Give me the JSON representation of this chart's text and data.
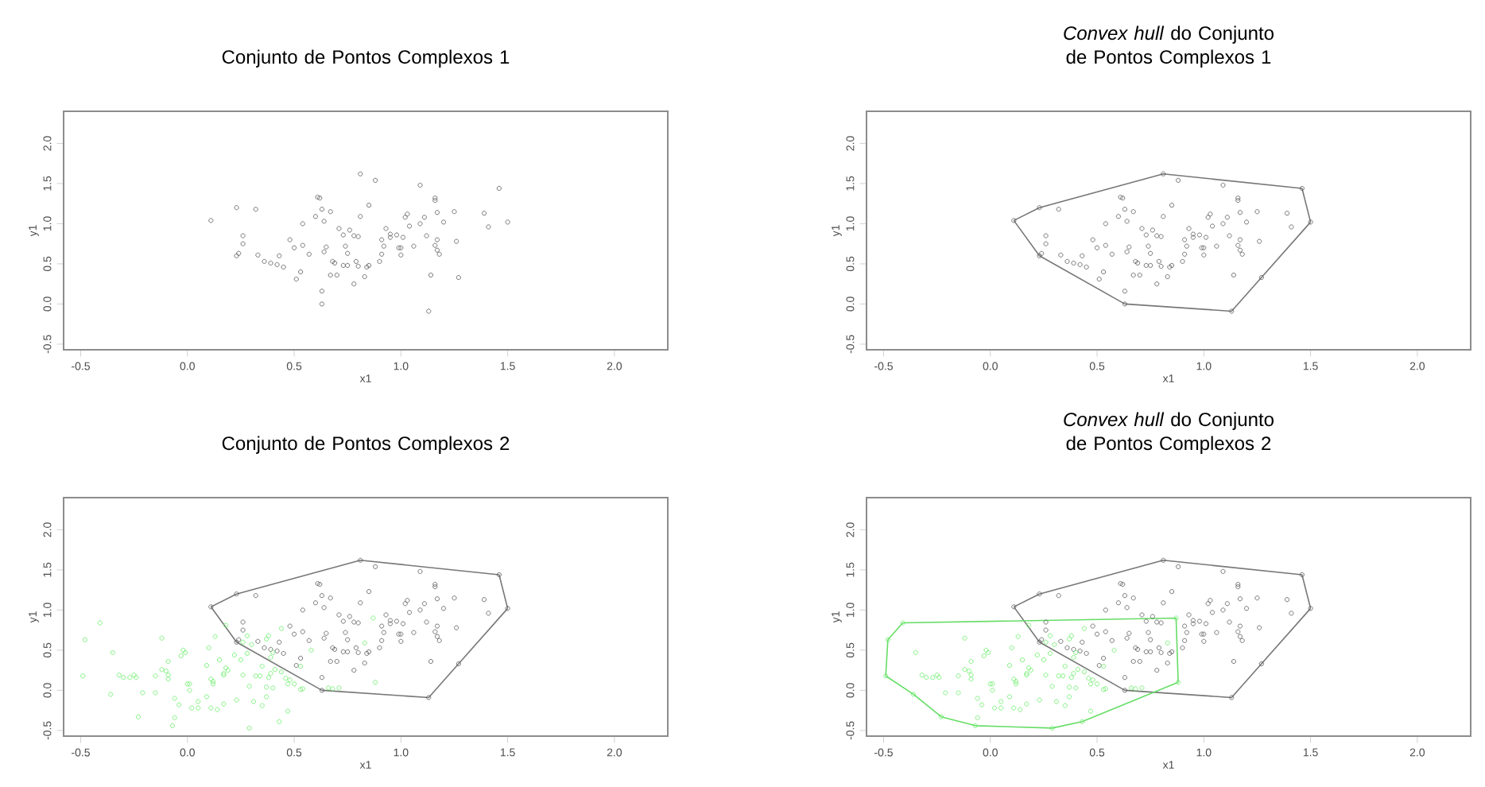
{
  "chart_data": [
    {
      "type": "scatter",
      "title": "Conjunto de Pontos Complexos 1",
      "xlabel": "x1",
      "ylabel": "y1",
      "marker": "circle",
      "xlim": [
        -0.58,
        2.25
      ],
      "ylim": [
        -0.57,
        2.4
      ],
      "xticks": [
        {
          "value": -0.5,
          "label": "-0.5"
        },
        {
          "value": 0,
          "label": "0.0"
        },
        {
          "value": 0.5,
          "label": "0.5"
        },
        {
          "value": 1,
          "label": "1.0"
        },
        {
          "value": 1.5,
          "label": "1.5"
        },
        {
          "value": 2,
          "label": "2.0"
        }
      ],
      "yticks": [
        {
          "value": -0.5,
          "label": "-0.5"
        },
        {
          "value": 0,
          "label": "0.0"
        },
        {
          "value": 0.5,
          "label": "0.5"
        },
        {
          "value": 1,
          "label": "1.0"
        },
        {
          "value": 1.5,
          "label": "1.5"
        },
        {
          "value": 2,
          "label": "2.0"
        }
      ],
      "series": [
        {
          "color": "#555555",
          "x": [
            0.11,
            0.23,
            0.32,
            0.26,
            0.26,
            0.23,
            0.24,
            0.33,
            0.36,
            0.39,
            0.42,
            0.43,
            0.45,
            0.48,
            0.5,
            0.51,
            0.53,
            0.54,
            0.54,
            0.57,
            0.6,
            0.61,
            0.62,
            0.63,
            0.64,
            0.65,
            0.64,
            0.67,
            0.67,
            0.68,
            0.69,
            0.7,
            0.63,
            0.63,
            0.71,
            0.73,
            0.74,
            0.75,
            0.73,
            0.75,
            0.78,
            0.76,
            0.78,
            0.79,
            0.8,
            0.8,
            0.81,
            0.81,
            0.83,
            0.84,
            0.85,
            0.85,
            0.88,
            0.9,
            0.91,
            0.91,
            0.92,
            0.93,
            0.95,
            0.95,
            0.98,
            0.99,
            1.0,
            1.0,
            1.01,
            1.02,
            1.03,
            1.04,
            1.06,
            1.09,
            1.09,
            1.11,
            1.12,
            1.14,
            1.13,
            1.16,
            1.16,
            1.16,
            1.17,
            1.17,
            1.18,
            1.17,
            1.2,
            1.25,
            1.26,
            1.27,
            1.39,
            1.41,
            1.46,
            1.5
          ],
          "values": [
            1.04,
            1.2,
            1.18,
            0.85,
            0.75,
            0.6,
            0.63,
            0.61,
            0.53,
            0.51,
            0.49,
            0.6,
            0.46,
            0.8,
            0.7,
            0.31,
            0.4,
            1.0,
            0.73,
            0.62,
            1.09,
            1.33,
            1.32,
            1.18,
            1.03,
            0.71,
            0.65,
            1.15,
            0.36,
            0.53,
            0.51,
            0.36,
            0.16,
            0.0,
            0.94,
            0.86,
            0.72,
            0.63,
            0.48,
            0.48,
            0.25,
            0.92,
            0.85,
            0.53,
            0.47,
            0.84,
            1.62,
            1.09,
            0.34,
            0.46,
            0.48,
            1.23,
            1.54,
            0.53,
            0.62,
            0.8,
            0.72,
            0.94,
            0.87,
            0.83,
            0.86,
            0.7,
            0.61,
            0.7,
            0.83,
            1.08,
            1.12,
            0.97,
            0.72,
            1.48,
            1.0,
            1.08,
            0.85,
            0.36,
            -0.09,
            1.32,
            1.29,
            0.73,
            0.8,
            0.67,
            0.62,
            1.14,
            1.02,
            1.15,
            0.78,
            0.33,
            1.13,
            0.96,
            1.44,
            1.02
          ]
        }
      ]
    },
    {
      "type": "scatter",
      "title": "*Convex hull* do Conjunto de Pontos Complexos 1",
      "xlabel": "x1",
      "ylabel": "y1",
      "marker": "circle",
      "xlim": [
        -0.58,
        2.25
      ],
      "ylim": [
        -0.57,
        2.4
      ],
      "xticks": [
        {
          "value": -0.5,
          "label": "-0.5"
        },
        {
          "value": 0,
          "label": "0.0"
        },
        {
          "value": 0.5,
          "label": "0.5"
        },
        {
          "value": 1,
          "label": "1.0"
        },
        {
          "value": 1.5,
          "label": "1.5"
        },
        {
          "value": 2,
          "label": "2.0"
        }
      ],
      "yticks": [
        {
          "value": -0.5,
          "label": "-0.5"
        },
        {
          "value": 0,
          "label": "0.0"
        },
        {
          "value": 0.5,
          "label": "0.5"
        },
        {
          "value": 1,
          "label": "1.0"
        },
        {
          "value": 1.5,
          "label": "1.5"
        },
        {
          "value": 2,
          "label": "2.0"
        }
      ],
      "series": [
        {
          "color": "#555555",
          "x": [
            0.11,
            0.23,
            0.32,
            0.26,
            0.26,
            0.23,
            0.24,
            0.33,
            0.36,
            0.39,
            0.42,
            0.43,
            0.45,
            0.48,
            0.5,
            0.51,
            0.53,
            0.54,
            0.54,
            0.57,
            0.6,
            0.61,
            0.62,
            0.63,
            0.64,
            0.65,
            0.64,
            0.67,
            0.67,
            0.68,
            0.69,
            0.7,
            0.63,
            0.63,
            0.71,
            0.73,
            0.74,
            0.75,
            0.73,
            0.75,
            0.78,
            0.76,
            0.78,
            0.79,
            0.8,
            0.8,
            0.81,
            0.81,
            0.83,
            0.84,
            0.85,
            0.85,
            0.88,
            0.9,
            0.91,
            0.91,
            0.92,
            0.93,
            0.95,
            0.95,
            0.98,
            0.99,
            1.0,
            1.0,
            1.01,
            1.02,
            1.03,
            1.04,
            1.06,
            1.09,
            1.09,
            1.11,
            1.12,
            1.14,
            1.13,
            1.16,
            1.16,
            1.16,
            1.17,
            1.17,
            1.18,
            1.17,
            1.2,
            1.25,
            1.26,
            1.27,
            1.39,
            1.41,
            1.46,
            1.5
          ],
          "values": [
            1.04,
            1.2,
            1.18,
            0.85,
            0.75,
            0.6,
            0.63,
            0.61,
            0.53,
            0.51,
            0.49,
            0.6,
            0.46,
            0.8,
            0.7,
            0.31,
            0.4,
            1.0,
            0.73,
            0.62,
            1.09,
            1.33,
            1.32,
            1.18,
            1.03,
            0.71,
            0.65,
            1.15,
            0.36,
            0.53,
            0.51,
            0.36,
            0.16,
            0.0,
            0.94,
            0.86,
            0.72,
            0.63,
            0.48,
            0.48,
            0.25,
            0.92,
            0.85,
            0.53,
            0.47,
            0.84,
            1.62,
            1.09,
            0.34,
            0.46,
            0.48,
            1.23,
            1.54,
            0.53,
            0.62,
            0.8,
            0.72,
            0.94,
            0.87,
            0.83,
            0.86,
            0.7,
            0.61,
            0.7,
            0.83,
            1.08,
            1.12,
            0.97,
            0.72,
            1.48,
            1.0,
            1.08,
            0.85,
            0.36,
            -0.09,
            1.32,
            1.29,
            0.73,
            0.8,
            0.67,
            0.62,
            1.14,
            1.02,
            1.15,
            0.78,
            0.33,
            1.13,
            0.96,
            1.44,
            1.02
          ]
        },
        {
          "type": "line",
          "marker": "none",
          "color": "#777777",
          "x": [
            0.11,
            0.23,
            0.81,
            1.46,
            1.5
          ],
          "values": [
            1.04,
            1.2,
            1.62,
            1.44,
            1.02
          ]
        },
        {
          "type": "line",
          "marker": "none",
          "color": "#777777",
          "x": [
            0.11,
            0.23,
            0.63,
            1.13,
            1.27,
            1.5
          ],
          "values": [
            1.04,
            0.6,
            0.0,
            -0.09,
            0.33,
            1.02
          ]
        }
      ]
    },
    {
      "type": "scatter",
      "title": "Conjunto de Pontos Complexos 2",
      "xlabel": "x1",
      "ylabel": "y1",
      "marker": "circle",
      "xlim": [
        -0.58,
        2.25
      ],
      "ylim": [
        -0.57,
        2.4
      ],
      "xticks": [
        {
          "value": -0.5,
          "label": "-0.5"
        },
        {
          "value": 0,
          "label": "0.0"
        },
        {
          "value": 0.5,
          "label": "0.5"
        },
        {
          "value": 1,
          "label": "1.0"
        },
        {
          "value": 1.5,
          "label": "1.5"
        },
        {
          "value": 2,
          "label": "2.0"
        }
      ],
      "yticks": [
        {
          "value": -0.5,
          "label": "-0.5"
        },
        {
          "value": 0,
          "label": "0.0"
        },
        {
          "value": 0.5,
          "label": "0.5"
        },
        {
          "value": 1,
          "label": "1.0"
        },
        {
          "value": 1.5,
          "label": "1.5"
        },
        {
          "value": 2,
          "label": "2.0"
        }
      ],
      "series": [
        {
          "color": "#555555",
          "x": [
            0.11,
            0.23,
            0.32,
            0.26,
            0.26,
            0.23,
            0.24,
            0.33,
            0.36,
            0.39,
            0.42,
            0.43,
            0.45,
            0.48,
            0.5,
            0.51,
            0.53,
            0.54,
            0.54,
            0.57,
            0.6,
            0.61,
            0.62,
            0.63,
            0.64,
            0.65,
            0.64,
            0.67,
            0.67,
            0.68,
            0.69,
            0.7,
            0.63,
            0.63,
            0.71,
            0.73,
            0.74,
            0.75,
            0.73,
            0.75,
            0.78,
            0.76,
            0.78,
            0.79,
            0.8,
            0.8,
            0.81,
            0.81,
            0.83,
            0.84,
            0.85,
            0.85,
            0.88,
            0.9,
            0.91,
            0.91,
            0.92,
            0.93,
            0.95,
            0.95,
            0.98,
            0.99,
            1.0,
            1.0,
            1.01,
            1.02,
            1.03,
            1.04,
            1.06,
            1.09,
            1.09,
            1.11,
            1.12,
            1.14,
            1.13,
            1.16,
            1.16,
            1.16,
            1.17,
            1.17,
            1.18,
            1.17,
            1.2,
            1.25,
            1.26,
            1.27,
            1.39,
            1.41,
            1.46,
            1.5
          ],
          "values": [
            1.04,
            1.2,
            1.18,
            0.85,
            0.75,
            0.6,
            0.63,
            0.61,
            0.53,
            0.51,
            0.49,
            0.6,
            0.46,
            0.8,
            0.7,
            0.31,
            0.4,
            1.0,
            0.73,
            0.62,
            1.09,
            1.33,
            1.32,
            1.18,
            1.03,
            0.71,
            0.65,
            1.15,
            0.36,
            0.53,
            0.51,
            0.36,
            0.16,
            0.0,
            0.94,
            0.86,
            0.72,
            0.63,
            0.48,
            0.48,
            0.25,
            0.92,
            0.85,
            0.53,
            0.47,
            0.84,
            1.62,
            1.09,
            0.34,
            0.46,
            0.48,
            1.23,
            1.54,
            0.53,
            0.62,
            0.8,
            0.72,
            0.94,
            0.87,
            0.83,
            0.86,
            0.7,
            0.61,
            0.7,
            0.83,
            1.08,
            1.12,
            0.97,
            0.72,
            1.48,
            1.0,
            1.08,
            0.85,
            0.36,
            -0.09,
            1.32,
            1.29,
            0.73,
            0.8,
            0.67,
            0.62,
            1.14,
            1.02,
            1.15,
            0.78,
            0.33,
            1.13,
            0.96,
            1.44,
            1.02
          ]
        },
        {
          "type": "line",
          "marker": "none",
          "color": "#777777",
          "x": [
            0.11,
            0.23,
            0.81,
            1.46,
            1.5
          ],
          "values": [
            1.04,
            1.2,
            1.62,
            1.44,
            1.02
          ]
        },
        {
          "type": "line",
          "marker": "none",
          "color": "#777777",
          "x": [
            0.11,
            0.23,
            0.63,
            1.13,
            1.27,
            1.5
          ],
          "values": [
            1.04,
            0.6,
            0.0,
            -0.09,
            0.33,
            1.02
          ]
        },
        {
          "color": "#66ee66",
          "x": [
            -0.49,
            -0.48,
            -0.41,
            -0.36,
            -0.35,
            -0.32,
            -0.3,
            -0.27,
            -0.25,
            -0.24,
            -0.23,
            -0.21,
            -0.15,
            -0.15,
            -0.12,
            -0.12,
            -0.1,
            -0.09,
            -0.09,
            -0.09,
            -0.07,
            -0.06,
            -0.06,
            -0.04,
            -0.03,
            -0.02,
            -0.01,
            0.0,
            0.01,
            0.01,
            0.02,
            0.05,
            0.05,
            0.09,
            0.09,
            0.1,
            0.11,
            0.11,
            0.12,
            0.12,
            0.13,
            0.14,
            0.15,
            0.17,
            0.17,
            0.17,
            0.18,
            0.18,
            0.19,
            0.22,
            0.23,
            0.25,
            0.26,
            0.26,
            0.28,
            0.28,
            0.29,
            0.29,
            0.3,
            0.31,
            0.32,
            0.34,
            0.35,
            0.35,
            0.37,
            0.37,
            0.37,
            0.38,
            0.38,
            0.39,
            0.39,
            0.4,
            0.4,
            0.41,
            0.43,
            0.44,
            0.44,
            0.46,
            0.47,
            0.47,
            0.48,
            0.5,
            0.53,
            0.53,
            0.54,
            0.58,
            0.66,
            0.68,
            0.71,
            0.83,
            0.87,
            0.88
          ],
          "values": [
            0.18,
            0.63,
            0.84,
            -0.05,
            0.47,
            0.19,
            0.16,
            0.16,
            0.19,
            0.16,
            -0.33,
            -0.03,
            -0.03,
            0.18,
            0.65,
            0.26,
            0.24,
            0.19,
            0.36,
            0.14,
            -0.44,
            -0.1,
            -0.34,
            -0.18,
            0.43,
            0.5,
            0.47,
            0.08,
            0.08,
            0.0,
            -0.22,
            -0.14,
            -0.22,
            -0.08,
            0.31,
            0.53,
            0.14,
            -0.22,
            0.11,
            0.08,
            0.67,
            -0.24,
            0.38,
            0.19,
            -0.17,
            0.21,
            0.81,
            0.28,
            0.25,
            0.44,
            -0.12,
            0.38,
            0.19,
            0.6,
            0.68,
            0.46,
            -0.47,
            0.05,
            0.57,
            -0.14,
            0.18,
            0.18,
            -0.19,
            0.3,
            0.04,
            -0.08,
            0.64,
            0.68,
            0.16,
            0.41,
            0.21,
            0.47,
            0.03,
            0.26,
            -0.39,
            0.23,
            0.77,
            0.15,
            -0.26,
            0.08,
            0.13,
            0.08,
            0.3,
            0.01,
            0.02,
            0.5,
            0.03,
            0.02,
            0.03,
            0.59,
            0.9,
            0.1
          ]
        }
      ]
    },
    {
      "type": "scatter",
      "title": "*Convex hull* do Conjunto de Pontos Complexos 2",
      "xlabel": "x1",
      "ylabel": "y1",
      "marker": "circle",
      "xlim": [
        -0.58,
        2.25
      ],
      "ylim": [
        -0.57,
        2.4
      ],
      "xticks": [
        {
          "value": -0.5,
          "label": "-0.5"
        },
        {
          "value": 0,
          "label": "0.0"
        },
        {
          "value": 0.5,
          "label": "0.5"
        },
        {
          "value": 1,
          "label": "1.0"
        },
        {
          "value": 1.5,
          "label": "1.5"
        },
        {
          "value": 2,
          "label": "2.0"
        }
      ],
      "yticks": [
        {
          "value": -0.5,
          "label": "-0.5"
        },
        {
          "value": 0,
          "label": "0.0"
        },
        {
          "value": 0.5,
          "label": "0.5"
        },
        {
          "value": 1,
          "label": "1.0"
        },
        {
          "value": 1.5,
          "label": "1.5"
        },
        {
          "value": 2,
          "label": "2.0"
        }
      ],
      "series": [
        {
          "color": "#555555",
          "x": [
            0.11,
            0.23,
            0.32,
            0.26,
            0.26,
            0.23,
            0.24,
            0.33,
            0.36,
            0.39,
            0.42,
            0.43,
            0.45,
            0.48,
            0.5,
            0.51,
            0.53,
            0.54,
            0.54,
            0.57,
            0.6,
            0.61,
            0.62,
            0.63,
            0.64,
            0.65,
            0.64,
            0.67,
            0.67,
            0.68,
            0.69,
            0.7,
            0.63,
            0.63,
            0.71,
            0.73,
            0.74,
            0.75,
            0.73,
            0.75,
            0.78,
            0.76,
            0.78,
            0.79,
            0.8,
            0.8,
            0.81,
            0.81,
            0.83,
            0.84,
            0.85,
            0.85,
            0.88,
            0.9,
            0.91,
            0.91,
            0.92,
            0.93,
            0.95,
            0.95,
            0.98,
            0.99,
            1.0,
            1.0,
            1.01,
            1.02,
            1.03,
            1.04,
            1.06,
            1.09,
            1.09,
            1.11,
            1.12,
            1.14,
            1.13,
            1.16,
            1.16,
            1.16,
            1.17,
            1.17,
            1.18,
            1.17,
            1.2,
            1.25,
            1.26,
            1.27,
            1.39,
            1.41,
            1.46,
            1.5
          ],
          "values": [
            1.04,
            1.2,
            1.18,
            0.85,
            0.75,
            0.6,
            0.63,
            0.61,
            0.53,
            0.51,
            0.49,
            0.6,
            0.46,
            0.8,
            0.7,
            0.31,
            0.4,
            1.0,
            0.73,
            0.62,
            1.09,
            1.33,
            1.32,
            1.18,
            1.03,
            0.71,
            0.65,
            1.15,
            0.36,
            0.53,
            0.51,
            0.36,
            0.16,
            0.0,
            0.94,
            0.86,
            0.72,
            0.63,
            0.48,
            0.48,
            0.25,
            0.92,
            0.85,
            0.53,
            0.47,
            0.84,
            1.62,
            1.09,
            0.34,
            0.46,
            0.48,
            1.23,
            1.54,
            0.53,
            0.62,
            0.8,
            0.72,
            0.94,
            0.87,
            0.83,
            0.86,
            0.7,
            0.61,
            0.7,
            0.83,
            1.08,
            1.12,
            0.97,
            0.72,
            1.48,
            1.0,
            1.08,
            0.85,
            0.36,
            -0.09,
            1.32,
            1.29,
            0.73,
            0.8,
            0.67,
            0.62,
            1.14,
            1.02,
            1.15,
            0.78,
            0.33,
            1.13,
            0.96,
            1.44,
            1.02
          ]
        },
        {
          "type": "line",
          "marker": "none",
          "color": "#777777",
          "x": [
            0.11,
            0.23,
            0.81,
            1.46,
            1.5
          ],
          "values": [
            1.04,
            1.2,
            1.62,
            1.44,
            1.02
          ]
        },
        {
          "type": "line",
          "marker": "none",
          "color": "#777777",
          "x": [
            0.11,
            0.23,
            0.63,
            1.13,
            1.27,
            1.5
          ],
          "values": [
            1.04,
            0.6,
            0.0,
            -0.09,
            0.33,
            1.02
          ]
        },
        {
          "color": "#66ee66",
          "x": [
            -0.49,
            -0.48,
            -0.41,
            -0.36,
            -0.35,
            -0.32,
            -0.3,
            -0.27,
            -0.25,
            -0.24,
            -0.23,
            -0.21,
            -0.15,
            -0.15,
            -0.12,
            -0.12,
            -0.1,
            -0.09,
            -0.09,
            -0.09,
            -0.07,
            -0.06,
            -0.06,
            -0.04,
            -0.03,
            -0.02,
            -0.01,
            0.0,
            0.01,
            0.01,
            0.02,
            0.05,
            0.05,
            0.09,
            0.09,
            0.1,
            0.11,
            0.11,
            0.12,
            0.12,
            0.13,
            0.14,
            0.15,
            0.17,
            0.17,
            0.17,
            0.18,
            0.18,
            0.19,
            0.22,
            0.23,
            0.25,
            0.26,
            0.26,
            0.28,
            0.28,
            0.29,
            0.29,
            0.3,
            0.31,
            0.32,
            0.34,
            0.35,
            0.35,
            0.37,
            0.37,
            0.37,
            0.38,
            0.38,
            0.39,
            0.39,
            0.4,
            0.4,
            0.41,
            0.43,
            0.44,
            0.44,
            0.46,
            0.47,
            0.47,
            0.48,
            0.5,
            0.53,
            0.53,
            0.54,
            0.58,
            0.66,
            0.68,
            0.71,
            0.83,
            0.87,
            0.88
          ],
          "values": [
            0.18,
            0.63,
            0.84,
            -0.05,
            0.47,
            0.19,
            0.16,
            0.16,
            0.19,
            0.16,
            -0.33,
            -0.03,
            -0.03,
            0.18,
            0.65,
            0.26,
            0.24,
            0.19,
            0.36,
            0.14,
            -0.44,
            -0.1,
            -0.34,
            -0.18,
            0.43,
            0.5,
            0.47,
            0.08,
            0.08,
            0.0,
            -0.22,
            -0.14,
            -0.22,
            -0.08,
            0.31,
            0.53,
            0.14,
            -0.22,
            0.11,
            0.08,
            0.67,
            -0.24,
            0.38,
            0.19,
            -0.17,
            0.21,
            0.81,
            0.28,
            0.25,
            0.44,
            -0.12,
            0.38,
            0.19,
            0.6,
            0.68,
            0.46,
            -0.47,
            0.05,
            0.57,
            -0.14,
            0.18,
            0.18,
            -0.19,
            0.3,
            0.04,
            -0.08,
            0.64,
            0.68,
            0.16,
            0.41,
            0.21,
            0.47,
            0.03,
            0.26,
            -0.39,
            0.23,
            0.77,
            0.15,
            -0.26,
            0.08,
            0.13,
            0.08,
            0.3,
            0.01,
            0.02,
            0.5,
            0.03,
            0.02,
            0.03,
            0.59,
            0.9,
            0.1
          ]
        },
        {
          "type": "line",
          "marker": "none",
          "color": "#66dd66",
          "x": [
            -0.49,
            -0.48,
            -0.41,
            0.87,
            0.88
          ],
          "values": [
            0.18,
            0.63,
            0.84,
            0.9,
            0.1
          ]
        },
        {
          "type": "line",
          "marker": "none",
          "color": "#66dd66",
          "x": [
            -0.49,
            -0.36,
            -0.23,
            -0.07,
            0.29,
            0.43,
            0.88
          ],
          "values": [
            0.18,
            -0.05,
            -0.33,
            -0.44,
            -0.47,
            -0.39,
            0.1
          ]
        }
      ]
    }
  ]
}
